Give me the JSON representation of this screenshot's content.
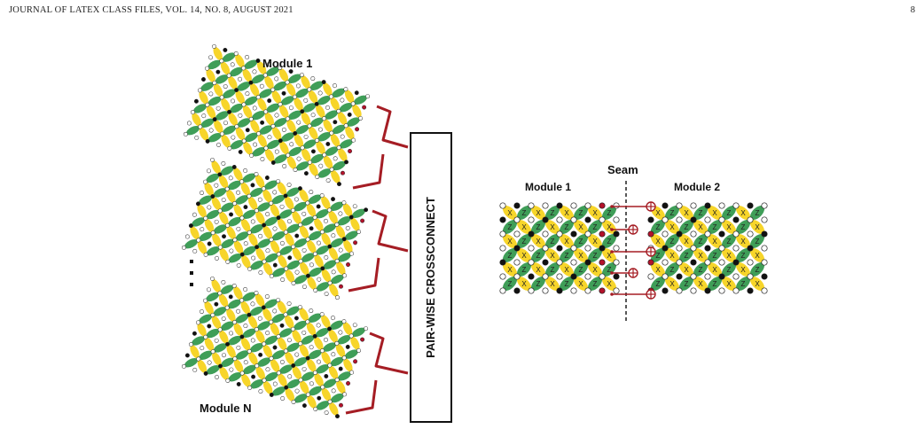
{
  "header": {
    "journal": "JOURNAL OF LATEX CLASS FILES, VOL. 14, NO. 8, AUGUST 2021",
    "page_number": "8"
  },
  "figure": {
    "left": {
      "module_top_label": "Module 1",
      "module_bottom_label": "Module N",
      "crossconnect_label": "PAIR-WISE CROSSCONNECT"
    },
    "right": {
      "seam_label": "Seam",
      "module1_label": "Module 1",
      "module2_label": "Module 2"
    },
    "stabilizer_x": "X",
    "stabilizer_z": "Z"
  },
  "colors": {
    "x_stabilizer": "#f7d52a",
    "z_stabilizer": "#3f9e58",
    "highlight_qubit": "#b3122a",
    "link": "#a51d24",
    "brace": "#a51d24"
  }
}
